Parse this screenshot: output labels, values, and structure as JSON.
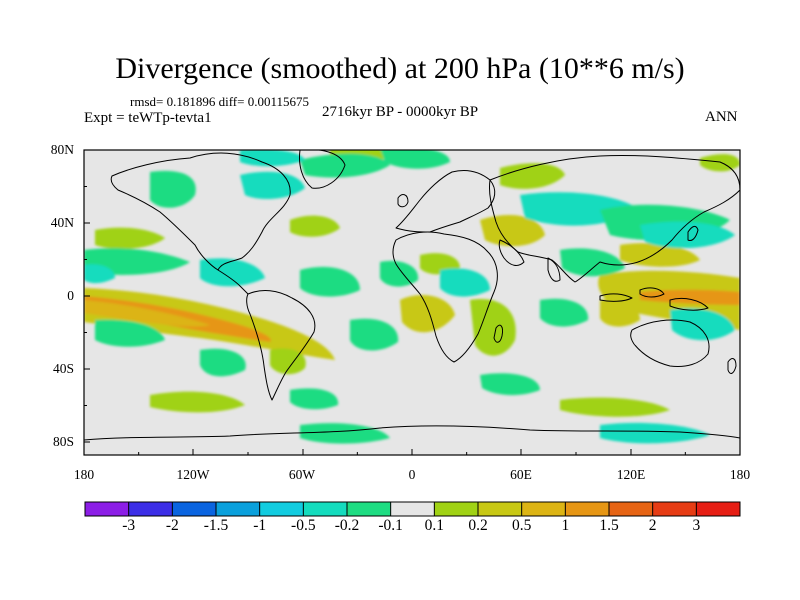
{
  "title": "Divergence (smoothed) at 200 hPa (10**6 m/s)",
  "stats": "rmsd= 0.181896 diff= 0.00115675",
  "experiment": "Expt = teWTp-tevta1",
  "period": "2716kyr BP - 0000kyr BP",
  "season": "ANN",
  "lat_ticks": [
    "80N",
    "40N",
    "0",
    "40S",
    "80S"
  ],
  "lon_ticks": [
    "180",
    "120W",
    "60W",
    "0",
    "60E",
    "120E",
    "180"
  ],
  "colorbar": {
    "labels": [
      "-3",
      "-2",
      "-1.5",
      "-1",
      "-0.5",
      "-0.2",
      "-0.1",
      "0.1",
      "0.2",
      "0.5",
      "1",
      "1.5",
      "2",
      "3"
    ],
    "colors": [
      "#8c1ee6",
      "#3c2ee6",
      "#0a64e0",
      "#0aa0dc",
      "#12cce0",
      "#14dcbe",
      "#1edc82",
      "#e6e6e6",
      "#a0d214",
      "#c8c814",
      "#dcb414",
      "#e69614",
      "#e66414",
      "#e63c14",
      "#e61e14"
    ]
  },
  "palette": {
    "ocean": "#e6e6e6",
    "neg1": "#1edc82",
    "neg2": "#14dcbe",
    "pos1": "#a0d214",
    "pos2": "#c8c814",
    "pos3": "#dcb414",
    "pos4": "#e69614"
  }
}
